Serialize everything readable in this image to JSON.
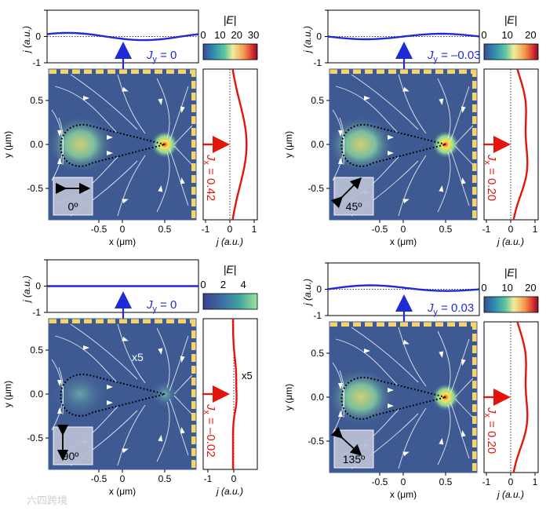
{
  "colors": {
    "plot_bg": "#3f5a93",
    "jy_curve": "#1f2bd6",
    "jx_curve": "#e3140c",
    "frame_yellow": "#f7d46a",
    "frame_blue": "#3e5fa3",
    "stream": "#ffffff",
    "hot_spot": "#f8e64f",
    "hot_core": "#e9462a"
  },
  "watermark": "六四跨境",
  "panels": [
    {
      "id": "a",
      "angle_label": "0º",
      "arrow_icon": "horizontal-double-arrow-icon",
      "jy_label": "J",
      "jy_sub": "y",
      "jy_value": " = 0",
      "jx_label": "J",
      "jx_sub": "x",
      "jx_value": " = 0.42",
      "x_axis_label": "x (μm)",
      "y_axis_label": "y (μm)",
      "j_axis_label": "j (a.u.)",
      "cbar_title": "|E|",
      "cbar_ticks": [
        "0",
        "10",
        "20",
        "30"
      ],
      "cbar_type": "jet",
      "x_ticks": [
        "-0.5",
        "0",
        "0.5"
      ],
      "y_ticks": [
        "0.5",
        "0.0",
        "-0.5"
      ],
      "jx_ticks": [
        "-1",
        "0",
        "1"
      ],
      "jy_yticks": [
        "0",
        "-1"
      ],
      "annotation_x5_map": "",
      "annotation_x5_side": "",
      "side_curve": {
        "peak": 0.62,
        "dip": -0.02
      },
      "top_curve": {
        "amp": 0.05
      }
    },
    {
      "id": "b",
      "angle_label": "45º",
      "arrow_icon": "diagonal-double-arrow-icon",
      "jy_label": "J",
      "jy_sub": "y",
      "jy_value": " = –0.03",
      "jx_label": "J",
      "jx_sub": "x",
      "jx_value": " = 0.20",
      "x_axis_label": "x (μm)",
      "y_axis_label": "y (μm)",
      "j_axis_label": "j (a.u.)",
      "cbar_title": "|E|",
      "cbar_ticks": [
        "0",
        "10",
        "20"
      ],
      "cbar_type": "jet",
      "x_ticks": [
        "-0.5",
        "0",
        "0.5"
      ],
      "y_ticks": [
        "0.5",
        "0.0",
        "-0.5"
      ],
      "jx_ticks": [
        "-1",
        "0",
        "1"
      ],
      "jy_yticks": [
        "0",
        "-1"
      ],
      "annotation_x5_map": "",
      "annotation_x5_side": "",
      "side_curve": {
        "peak": 0.55,
        "dip": 0.05
      },
      "top_curve": {
        "amp": -0.05
      }
    },
    {
      "id": "c",
      "angle_label": "90º",
      "arrow_icon": "vertical-double-arrow-icon",
      "jy_label": "J",
      "jy_sub": "y",
      "jy_value": " = 0",
      "jx_label": "J",
      "jx_sub": "x",
      "jx_value": " = –0.02",
      "x_axis_label": "x (μm)",
      "y_axis_label": "y (μm)",
      "j_axis_label": "j (a.u.)",
      "cbar_title": "|E|",
      "cbar_ticks": [
        "0",
        "2",
        "4"
      ],
      "cbar_type": "viridis",
      "x_ticks": [
        "-0.5",
        "0",
        "0.5"
      ],
      "y_ticks": [
        "0.5",
        "0.0",
        "-0.5"
      ],
      "jx_ticks": [
        "-1",
        "0"
      ],
      "jy_yticks": [
        "0",
        "-1"
      ],
      "annotation_x5_map": "x5",
      "annotation_x5_side": "x5",
      "side_curve": {
        "peak": 0.2,
        "dip": -0.02
      },
      "top_curve": {
        "amp": 0.0
      }
    },
    {
      "id": "d",
      "angle_label": "135º",
      "arrow_icon": "antidiagonal-double-arrow-icon",
      "jy_label": "J",
      "jy_sub": "y",
      "jy_value": " = 0.03",
      "jx_label": "J",
      "jx_sub": "x",
      "jx_value": " = 0.20",
      "x_axis_label": "x (μm)",
      "y_axis_label": "y (μm)",
      "j_axis_label": "j (a.u.)",
      "cbar_title": "|E|",
      "cbar_ticks": [
        "0",
        "10",
        "20"
      ],
      "cbar_type": "jet",
      "x_ticks": [
        "-0.5",
        "0",
        "0.5"
      ],
      "y_ticks": [
        "0.5",
        "0.0",
        "-0.5"
      ],
      "jx_ticks": [
        "-1",
        "0",
        "1"
      ],
      "jy_yticks": [
        "0",
        "-1"
      ],
      "annotation_x5_map": "",
      "annotation_x5_side": "",
      "side_curve": {
        "peak": 0.55,
        "dip": 0.05
      },
      "top_curve": {
        "amp": 0.05
      }
    }
  ]
}
